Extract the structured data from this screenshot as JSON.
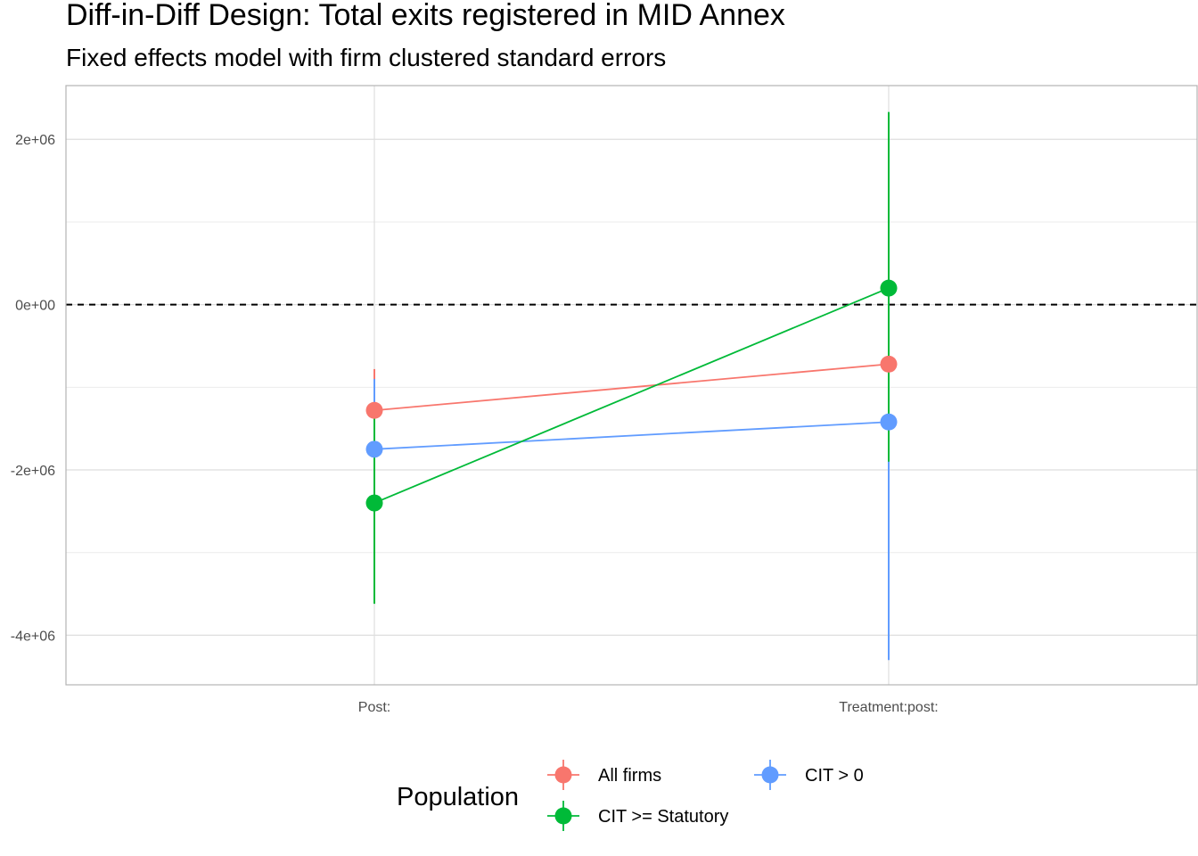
{
  "chart_data": {
    "type": "line",
    "title": "Diff-in-Diff Design: Total exits registered in MID Annex",
    "subtitle": "Fixed effects model with firm clustered standard errors",
    "xlabel": "",
    "ylabel": "",
    "categories": [
      "Post:",
      "Treatment:post:"
    ],
    "ylim": [
      -4600000,
      2650000
    ],
    "y_ticks": [
      2000000,
      0,
      -2000000,
      -4000000
    ],
    "y_tick_labels": [
      "2e+06",
      "0e+00",
      "-2e+06",
      "-4e+06"
    ],
    "reference_line": 0,
    "grid": true,
    "legend_position": "bottom",
    "legend_title": "Population",
    "series": [
      {
        "name": "All firms",
        "color": "#F8766D",
        "values": [
          -1280000,
          -720000
        ],
        "lower": [
          -1840000,
          -1200000
        ],
        "upper": [
          -780000,
          -240000
        ]
      },
      {
        "name": "CIT > 0",
        "color": "#619CFF",
        "values": [
          -1750000,
          -1420000
        ],
        "lower": [
          -2300000,
          -4300000
        ],
        "upper": [
          -900000,
          1450000
        ]
      },
      {
        "name": "CIT >= Statutory",
        "color": "#00BA38",
        "values": [
          -2400000,
          200000
        ],
        "lower": [
          -3620000,
          -1900000
        ],
        "upper": [
          -1200000,
          2330000
        ]
      }
    ]
  }
}
